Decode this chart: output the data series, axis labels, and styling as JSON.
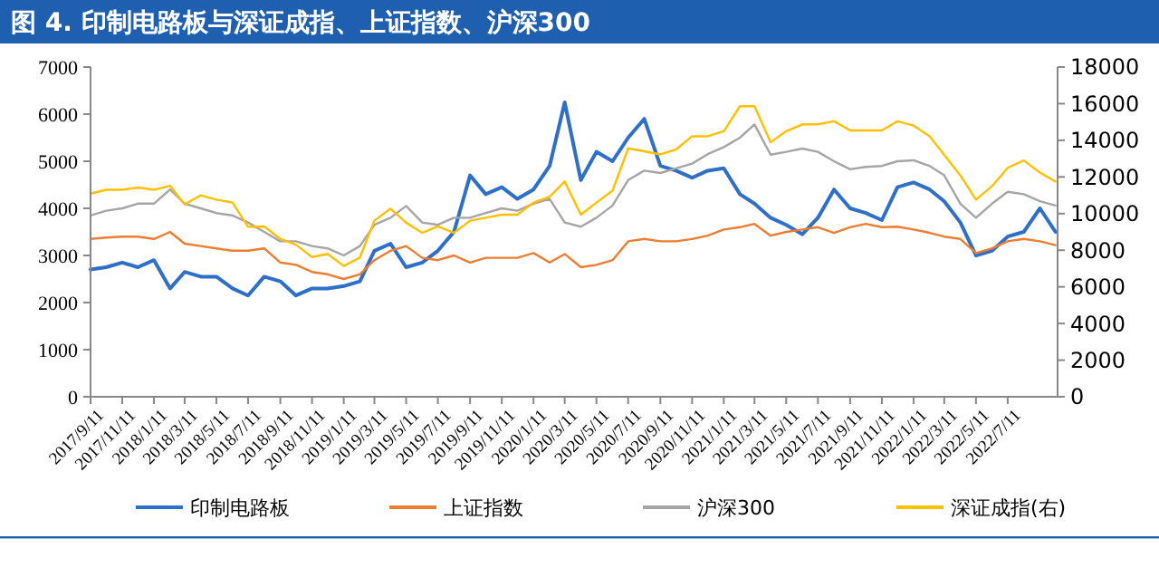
{
  "chart_data": {
    "type": "line",
    "title": "图 4. 印制电路板与深证成指、上证指数、沪深300",
    "x": [
      "2017-09-11",
      "2017-10-11",
      "2017-11-11",
      "2017-12-11",
      "2018-01-11",
      "2018-02-11",
      "2018-03-11",
      "2018-04-11",
      "2018-05-11",
      "2018-06-11",
      "2018-07-11",
      "2018-08-11",
      "2018-09-11",
      "2018-10-11",
      "2018-11-11",
      "2018-12-11",
      "2019-01-11",
      "2019-02-11",
      "2019-03-11",
      "2019-04-11",
      "2019-05-11",
      "2019-06-11",
      "2019-07-11",
      "2019-08-11",
      "2019-09-11",
      "2019-10-11",
      "2019-11-11",
      "2019-12-11",
      "2020-01-11",
      "2020-02-11",
      "2020-03-11",
      "2020-04-11",
      "2020-05-11",
      "2020-06-11",
      "2020-07-11",
      "2020-08-11",
      "2020-09-11",
      "2020-10-11",
      "2020-11-11",
      "2020-12-11",
      "2021-01-11",
      "2021-02-11",
      "2021-03-11",
      "2021-04-11",
      "2021-05-11",
      "2021-06-11",
      "2021-07-11",
      "2021-08-11",
      "2021-09-11",
      "2021-10-11",
      "2021-11-11",
      "2021-12-11",
      "2022-01-11",
      "2022-02-11",
      "2022-03-11",
      "2022-04-11",
      "2022-05-11",
      "2022-06-11",
      "2022-07-11",
      "2022-08-11",
      "2022-09-11",
      "2022-10-11"
    ],
    "series": [
      {
        "name": "印制电路板",
        "color": "#2e6fc9",
        "values": [
          2700,
          2750,
          2850,
          2750,
          2900,
          2300,
          2650,
          2550,
          2550,
          2300,
          2150,
          2550,
          2450,
          2150,
          2300,
          2300,
          2350,
          2450,
          3100,
          3250,
          2750,
          2850,
          3100,
          3500,
          4700,
          4300,
          4450,
          4200,
          4400,
          4900,
          6250,
          4600,
          5200,
          5000,
          5500,
          5900,
          4900,
          4800,
          4650,
          4800,
          4850,
          4300,
          4100,
          3800,
          3650,
          3450,
          3800,
          4400,
          4000,
          3900,
          3750,
          4450,
          4550,
          4400,
          4150,
          3700,
          3000,
          3100,
          3400,
          3500,
          4000,
          3500
        ]
      },
      {
        "name": "上证指数",
        "color": "#ed7d31",
        "values": [
          3350,
          3380,
          3400,
          3400,
          3350,
          3500,
          3250,
          3200,
          3150,
          3100,
          3100,
          3150,
          2850,
          2800,
          2650,
          2600,
          2500,
          2600,
          2900,
          3100,
          3200,
          2950,
          2900,
          3000,
          2850,
          2950,
          2950,
          2950,
          3050,
          2850,
          3030,
          2750,
          2800,
          2900,
          3300,
          3350,
          3300,
          3300,
          3350,
          3420,
          3550,
          3600,
          3670,
          3420,
          3500,
          3550,
          3600,
          3480,
          3600,
          3670,
          3600,
          3610,
          3550,
          3480,
          3400,
          3350,
          3050,
          3150,
          3300,
          3350,
          3300,
          3220
        ]
      },
      {
        "name": "沪深300",
        "color": "#a5a5a5",
        "values": [
          3850,
          3950,
          4000,
          4100,
          4100,
          4400,
          4100,
          4000,
          3900,
          3850,
          3700,
          3500,
          3300,
          3300,
          3200,
          3150,
          3000,
          3200,
          3650,
          3800,
          4050,
          3700,
          3650,
          3800,
          3800,
          3900,
          4000,
          3950,
          4100,
          4200,
          3700,
          3610,
          3800,
          4060,
          4600,
          4800,
          4750,
          4850,
          4950,
          5150,
          5300,
          5500,
          5780,
          5140,
          5200,
          5270,
          5200,
          5000,
          4830,
          4880,
          4900,
          5000,
          5020,
          4900,
          4700,
          4100,
          3800,
          4100,
          4350,
          4300,
          4150,
          4060
        ]
      },
      {
        "name": "深证成指(右)",
        "color": "#ffc000",
        "axis": "y2",
        "values": [
          11090,
          11300,
          11300,
          11420,
          11300,
          11520,
          10500,
          11000,
          10760,
          10600,
          9280,
          9300,
          8620,
          8300,
          7630,
          7800,
          7140,
          7600,
          9610,
          10270,
          9500,
          8950,
          9300,
          8950,
          9610,
          9770,
          9940,
          9940,
          10600,
          10920,
          11750,
          9940,
          10600,
          11250,
          13560,
          13400,
          13230,
          13500,
          14220,
          14220,
          14500,
          15860,
          15860,
          13890,
          14500,
          14870,
          14870,
          15040,
          14540,
          14540,
          14540,
          15040,
          14800,
          14220,
          13200,
          12080,
          10760,
          11500,
          12500,
          12900,
          12240,
          11750
        ]
      }
    ],
    "xlim": [
      "2017-09-11",
      "2022-10-15"
    ],
    "xticks": [
      {
        "value": "2017-09-11",
        "label": "2017/9/11"
      },
      {
        "value": "2017-11-11",
        "label": "2017/11/11"
      },
      {
        "value": "2018-01-11",
        "label": "2018/1/11"
      },
      {
        "value": "2018-03-11",
        "label": "2018/3/11"
      },
      {
        "value": "2018-05-11",
        "label": "2018/5/11"
      },
      {
        "value": "2018-07-11",
        "label": "2018/7/11"
      },
      {
        "value": "2018-09-11",
        "label": "2018/9/11"
      },
      {
        "value": "2018-11-11",
        "label": "2018/11/11"
      },
      {
        "value": "2019-01-11",
        "label": "2019/1/11"
      },
      {
        "value": "2019-03-11",
        "label": "2019/3/11"
      },
      {
        "value": "2019-05-11",
        "label": "2019/5/11"
      },
      {
        "value": "2019-07-11",
        "label": "2019/7/11"
      },
      {
        "value": "2019-09-11",
        "label": "2019/9/11"
      },
      {
        "value": "2019-11-11",
        "label": "2019/11/11"
      },
      {
        "value": "2020-01-11",
        "label": "2020/1/11"
      },
      {
        "value": "2020-03-11",
        "label": "2020/3/11"
      },
      {
        "value": "2020-05-11",
        "label": "2020/5/11"
      },
      {
        "value": "2020-07-11",
        "label": "2020/7/11"
      },
      {
        "value": "2020-09-11",
        "label": "2020/9/11"
      },
      {
        "value": "2020-11-11",
        "label": "2020/11/11"
      },
      {
        "value": "2021-01-11",
        "label": "2021/1/11"
      },
      {
        "value": "2021-03-11",
        "label": "2021/3/11"
      },
      {
        "value": "2021-05-11",
        "label": "2021/5/11"
      },
      {
        "value": "2021-07-11",
        "label": "2021/7/11"
      },
      {
        "value": "2021-09-11",
        "label": "2021/9/11"
      },
      {
        "value": "2021-11-11",
        "label": "2021/11/11"
      },
      {
        "value": "2022-01-11",
        "label": "2022/1/11"
      },
      {
        "value": "2022-03-11",
        "label": "2022/3/11"
      },
      {
        "value": "2022-05-11",
        "label": "2022/5/11"
      },
      {
        "value": "2022-07-11",
        "label": "2022/7/11"
      }
    ],
    "ylim": [
      0,
      7000
    ],
    "yticks": [
      0,
      1000,
      2000,
      3000,
      4000,
      5000,
      6000,
      7000
    ],
    "y2lim": [
      0,
      18000
    ],
    "y2ticks": [
      0,
      2000,
      4000,
      6000,
      8000,
      10000,
      12000,
      14000,
      16000,
      18000
    ],
    "legend": "bottom",
    "grid": false,
    "marker": "none",
    "line_style": "solid"
  }
}
